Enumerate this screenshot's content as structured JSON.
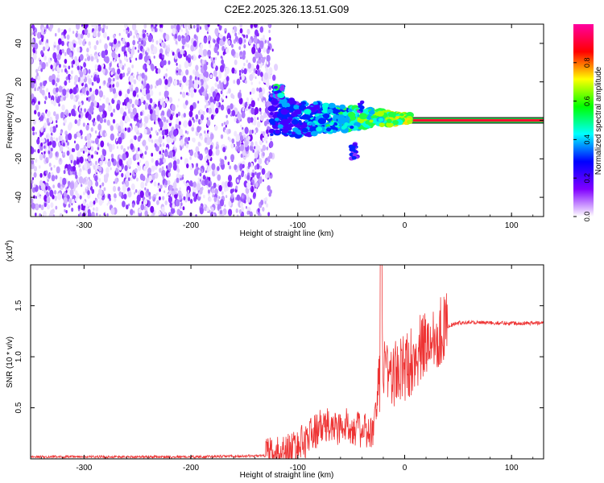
{
  "title": "C2E2.2025.326.13.51.G09",
  "chart_data": [
    {
      "type": "heatmap",
      "xlabel": "Height of straight line (km)",
      "ylabel": "Frequency (Hz)",
      "xlim": [
        -350,
        130
      ],
      "ylim": [
        -50,
        50
      ],
      "xticks": [
        -300,
        -200,
        -100,
        0,
        100
      ],
      "yticks": [
        -40,
        -20,
        0,
        20,
        40
      ],
      "colorbar": {
        "label": "Normalized spectral amplitude",
        "range": [
          0,
          1
        ],
        "ticks": [
          "0.0",
          "0.2",
          "0.4",
          "0.6",
          "0.8"
        ],
        "tick_values": [
          0.0,
          0.2,
          0.4,
          0.6,
          0.8
        ],
        "colors": [
          "#ffffff",
          "#8000ff",
          "#0000ff",
          "#00ffff",
          "#00ff00",
          "#ffff00",
          "#ff0000",
          "#ff00a0"
        ]
      },
      "features": {
        "noise_region_x": [
          -350,
          -125
        ],
        "signal_band_x": [
          5,
          130
        ],
        "signal_band_freq": 0
      },
      "grid": false
    },
    {
      "type": "line",
      "xlabel": "Height of straight line (km)",
      "ylabel": "SNR (10 * v/v)",
      "scale_label": "(x10",
      "scale_exp": "4",
      "xlim": [
        -350,
        130
      ],
      "ylim": [
        0,
        1.9
      ],
      "xticks": [
        -300,
        -200,
        -100,
        0,
        100
      ],
      "yticks": [
        0.5,
        1.0,
        1.5
      ],
      "ytick_labels": [
        "0.5",
        "1.0",
        "1.5"
      ],
      "color": "#ee3333",
      "grid": false,
      "series": [
        {
          "x": [
            -350,
            -300,
            -200,
            -130,
            -115,
            -100,
            -90,
            -80,
            -70,
            -60,
            -50,
            -40,
            -30,
            -25,
            -22,
            -20,
            -15,
            -10,
            -5,
            0,
            10,
            20,
            30,
            40,
            50,
            60,
            80,
            100,
            120,
            130
          ],
          "values": [
            0.02,
            0.02,
            0.02,
            0.03,
            0.05,
            0.12,
            0.22,
            0.3,
            0.32,
            0.3,
            0.33,
            0.27,
            0.25,
            0.55,
            0.95,
            0.98,
            0.85,
            0.82,
            0.85,
            0.88,
            1.02,
            1.12,
            1.23,
            1.3,
            1.33,
            1.34,
            1.33,
            1.33,
            1.33,
            1.33
          ]
        }
      ]
    }
  ]
}
